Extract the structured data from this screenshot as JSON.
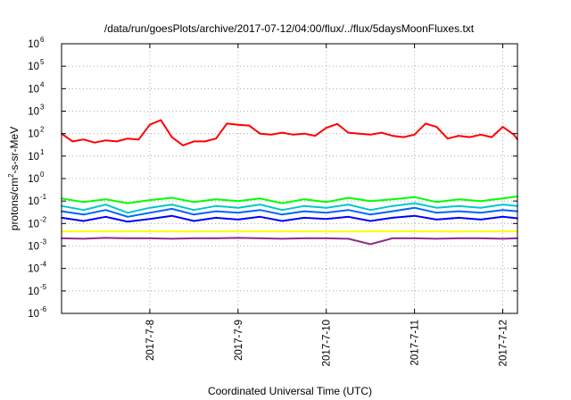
{
  "chart_data": {
    "type": "line",
    "title": "/data/run/goesPlots/archive/2017-07-12/04:00/flux/../flux/5daysMoonFluxes.txt",
    "xlabel": "Coordinated Universal Time (UTC)",
    "ylabel": {
      "prefix": "protons/cm",
      "sup": "2",
      "suffix": "-s-sr-MeV"
    },
    "y_scale": "log",
    "ylim": [
      1e-06,
      1000000.0
    ],
    "y_ticks": [
      {
        "value": 1000000.0,
        "base": "10",
        "exp": "6"
      },
      {
        "value": 100000.0,
        "base": "10",
        "exp": "5"
      },
      {
        "value": 10000.0,
        "base": "10",
        "exp": "4"
      },
      {
        "value": 1000.0,
        "base": "10",
        "exp": "3"
      },
      {
        "value": 100.0,
        "base": "10",
        "exp": "2"
      },
      {
        "value": 10.0,
        "base": "10",
        "exp": "1"
      },
      {
        "value": 1.0,
        "base": "10",
        "exp": "0"
      },
      {
        "value": 0.1,
        "base": "10",
        "exp": "-1"
      },
      {
        "value": 0.01,
        "base": "10",
        "exp": "-2"
      },
      {
        "value": 0.001,
        "base": "10",
        "exp": "-3"
      },
      {
        "value": 0.0001,
        "base": "10",
        "exp": "-4"
      },
      {
        "value": 1e-05,
        "base": "10",
        "exp": "-5"
      },
      {
        "value": 1e-06,
        "base": "10",
        "exp": "-6"
      }
    ],
    "xlim": [
      "2017-07-07 00:00",
      "2017-07-12 04:00"
    ],
    "x_ticks": [
      {
        "date": "2017-07-08 00:00",
        "label": "2017-7-8"
      },
      {
        "date": "2017-07-09 00:00",
        "label": "2017-7-9"
      },
      {
        "date": "2017-07-10 00:00",
        "label": "2017-7-10"
      },
      {
        "date": "2017-07-11 00:00",
        "label": "2017-7-11"
      },
      {
        "date": "2017-07-12 00:00",
        "label": "2017-7-12"
      }
    ],
    "grid": true,
    "legend": "none",
    "series": [
      {
        "color": "#ff0000",
        "x": [
          "2017-07-07 00:00",
          "2017-07-07 03:00",
          "2017-07-07 06:00",
          "2017-07-07 09:00",
          "2017-07-07 12:00",
          "2017-07-07 15:00",
          "2017-07-07 18:00",
          "2017-07-07 21:00",
          "2017-07-08 00:00",
          "2017-07-08 03:00",
          "2017-07-08 06:00",
          "2017-07-08 09:00",
          "2017-07-08 12:00",
          "2017-07-08 15:00",
          "2017-07-08 18:00",
          "2017-07-08 21:00",
          "2017-07-09 00:00",
          "2017-07-09 03:00",
          "2017-07-09 06:00",
          "2017-07-09 09:00",
          "2017-07-09 12:00",
          "2017-07-09 15:00",
          "2017-07-09 18:00",
          "2017-07-09 21:00",
          "2017-07-10 00:00",
          "2017-07-10 03:00",
          "2017-07-10 06:00",
          "2017-07-10 09:00",
          "2017-07-10 12:00",
          "2017-07-10 15:00",
          "2017-07-10 18:00",
          "2017-07-10 21:00",
          "2017-07-11 00:00",
          "2017-07-11 03:00",
          "2017-07-11 06:00",
          "2017-07-11 09:00",
          "2017-07-11 12:00",
          "2017-07-11 15:00",
          "2017-07-11 18:00",
          "2017-07-11 21:00",
          "2017-07-12 00:00",
          "2017-07-12 03:00",
          "2017-07-12 04:00"
        ],
        "values": [
          100,
          45,
          55,
          40,
          50,
          45,
          60,
          55,
          250,
          400,
          70,
          30,
          45,
          45,
          60,
          280,
          250,
          230,
          100,
          90,
          110,
          90,
          100,
          80,
          180,
          270,
          110,
          100,
          90,
          110,
          80,
          70,
          90,
          280,
          200,
          60,
          80,
          70,
          90,
          70,
          200,
          90,
          55
        ]
      },
      {
        "color": "#00ff00",
        "x": [
          "2017-07-07 00:00",
          "2017-07-07 06:00",
          "2017-07-07 12:00",
          "2017-07-07 18:00",
          "2017-07-08 00:00",
          "2017-07-08 06:00",
          "2017-07-08 12:00",
          "2017-07-08 18:00",
          "2017-07-09 00:00",
          "2017-07-09 06:00",
          "2017-07-09 12:00",
          "2017-07-09 18:00",
          "2017-07-10 00:00",
          "2017-07-10 06:00",
          "2017-07-10 12:00",
          "2017-07-10 18:00",
          "2017-07-11 00:00",
          "2017-07-11 06:00",
          "2017-07-11 12:00",
          "2017-07-11 18:00",
          "2017-07-12 00:00",
          "2017-07-12 04:00"
        ],
        "values": [
          0.13,
          0.09,
          0.12,
          0.08,
          0.11,
          0.14,
          0.09,
          0.12,
          0.1,
          0.13,
          0.08,
          0.12,
          0.09,
          0.14,
          0.1,
          0.12,
          0.15,
          0.09,
          0.12,
          0.1,
          0.13,
          0.16
        ]
      },
      {
        "color": "#00c8c8",
        "x": [
          "2017-07-07 00:00",
          "2017-07-07 06:00",
          "2017-07-07 12:00",
          "2017-07-07 18:00",
          "2017-07-08 00:00",
          "2017-07-08 06:00",
          "2017-07-08 12:00",
          "2017-07-08 18:00",
          "2017-07-09 00:00",
          "2017-07-09 06:00",
          "2017-07-09 12:00",
          "2017-07-09 18:00",
          "2017-07-10 00:00",
          "2017-07-10 06:00",
          "2017-07-10 12:00",
          "2017-07-10 18:00",
          "2017-07-11 00:00",
          "2017-07-11 06:00",
          "2017-07-11 12:00",
          "2017-07-11 18:00",
          "2017-07-12 00:00",
          "2017-07-12 04:00"
        ],
        "values": [
          0.06,
          0.04,
          0.07,
          0.03,
          0.05,
          0.07,
          0.04,
          0.06,
          0.05,
          0.07,
          0.04,
          0.06,
          0.05,
          0.07,
          0.04,
          0.06,
          0.08,
          0.05,
          0.06,
          0.05,
          0.07,
          0.06
        ]
      },
      {
        "color": "#0064ff",
        "x": [
          "2017-07-07 00:00",
          "2017-07-07 06:00",
          "2017-07-07 12:00",
          "2017-07-07 18:00",
          "2017-07-08 00:00",
          "2017-07-08 06:00",
          "2017-07-08 12:00",
          "2017-07-08 18:00",
          "2017-07-09 00:00",
          "2017-07-09 06:00",
          "2017-07-09 12:00",
          "2017-07-09 18:00",
          "2017-07-10 00:00",
          "2017-07-10 06:00",
          "2017-07-10 12:00",
          "2017-07-10 18:00",
          "2017-07-11 00:00",
          "2017-07-11 06:00",
          "2017-07-11 12:00",
          "2017-07-11 18:00",
          "2017-07-12 00:00",
          "2017-07-12 04:00"
        ],
        "values": [
          0.035,
          0.025,
          0.04,
          0.02,
          0.03,
          0.045,
          0.025,
          0.035,
          0.03,
          0.04,
          0.025,
          0.035,
          0.03,
          0.04,
          0.025,
          0.035,
          0.05,
          0.03,
          0.035,
          0.03,
          0.04,
          0.035
        ]
      },
      {
        "color": "#0000ff",
        "x": [
          "2017-07-07 00:00",
          "2017-07-07 06:00",
          "2017-07-07 12:00",
          "2017-07-07 18:00",
          "2017-07-08 00:00",
          "2017-07-08 06:00",
          "2017-07-08 12:00",
          "2017-07-08 18:00",
          "2017-07-09 00:00",
          "2017-07-09 06:00",
          "2017-07-09 12:00",
          "2017-07-09 18:00",
          "2017-07-10 00:00",
          "2017-07-10 06:00",
          "2017-07-10 12:00",
          "2017-07-10 18:00",
          "2017-07-11 00:00",
          "2017-07-11 06:00",
          "2017-07-11 12:00",
          "2017-07-11 18:00",
          "2017-07-12 00:00",
          "2017-07-12 04:00"
        ],
        "values": [
          0.018,
          0.013,
          0.02,
          0.012,
          0.016,
          0.022,
          0.013,
          0.018,
          0.015,
          0.02,
          0.013,
          0.018,
          0.016,
          0.02,
          0.013,
          0.018,
          0.022,
          0.015,
          0.018,
          0.015,
          0.02,
          0.017
        ]
      },
      {
        "color": "#ffff00",
        "x": [
          "2017-07-07 00:00",
          "2017-07-07 12:00",
          "2017-07-08 00:00",
          "2017-07-08 12:00",
          "2017-07-09 00:00",
          "2017-07-09 12:00",
          "2017-07-10 00:00",
          "2017-07-10 12:00",
          "2017-07-11 00:00",
          "2017-07-11 12:00",
          "2017-07-12 00:00",
          "2017-07-12 04:00"
        ],
        "values": [
          0.0045,
          0.0045,
          0.0045,
          0.0044,
          0.0045,
          0.0045,
          0.0044,
          0.0045,
          0.0045,
          0.0044,
          0.0045,
          0.0045
        ]
      },
      {
        "color": "#8b2f8b",
        "x": [
          "2017-07-07 00:00",
          "2017-07-07 06:00",
          "2017-07-07 12:00",
          "2017-07-07 18:00",
          "2017-07-08 00:00",
          "2017-07-08 06:00",
          "2017-07-08 12:00",
          "2017-07-08 18:00",
          "2017-07-09 00:00",
          "2017-07-09 06:00",
          "2017-07-09 12:00",
          "2017-07-09 18:00",
          "2017-07-10 00:00",
          "2017-07-10 06:00",
          "2017-07-10 12:00",
          "2017-07-10 18:00",
          "2017-07-11 00:00",
          "2017-07-11 06:00",
          "2017-07-11 12:00",
          "2017-07-11 18:00",
          "2017-07-12 00:00",
          "2017-07-12 04:00"
        ],
        "values": [
          0.0022,
          0.0021,
          0.0023,
          0.0022,
          0.0022,
          0.0021,
          0.0022,
          0.0022,
          0.0023,
          0.0022,
          0.0021,
          0.0022,
          0.0022,
          0.0021,
          0.0012,
          0.0022,
          0.0022,
          0.0021,
          0.0022,
          0.0022,
          0.0021,
          0.0022
        ]
      }
    ]
  }
}
